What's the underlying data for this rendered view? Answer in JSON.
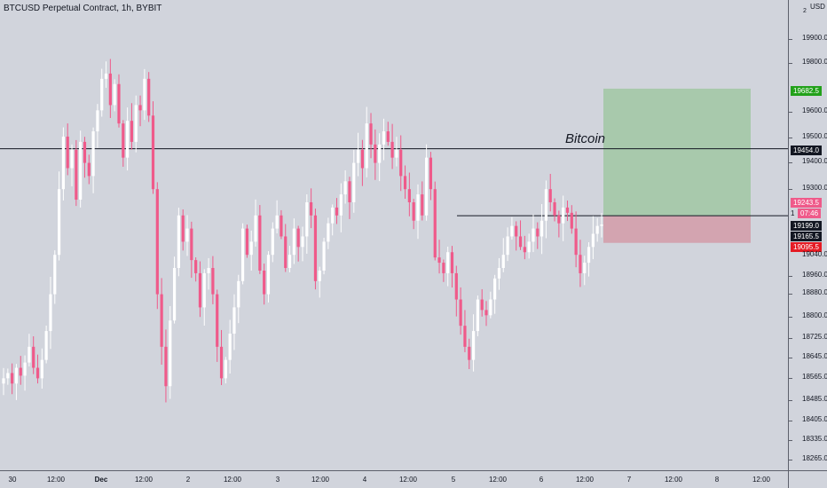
{
  "header": {
    "symbol_title": "BTCUSD Perpetual Contract, 1h, BYBIT"
  },
  "annotation": {
    "text": "Bitcoin"
  },
  "price_axis": {
    "currency": "USD",
    "top_marker": "2",
    "ticks": [
      "19900.0",
      "19800.0",
      "19600.0",
      "19500.0",
      "19400.0",
      "19300.0",
      "18960.0",
      "18880.0",
      "18800.0",
      "18725.0",
      "18645.0",
      "18565.0",
      "18485.0",
      "18405.0",
      "18335.0",
      "18265.0"
    ],
    "tags": {
      "target": "19682.5",
      "resistance": "19454.0",
      "high_marker": "19243.5",
      "countdown_prefix": "1",
      "countdown": "07:46",
      "level": "19199.0",
      "last_price": "19165.5",
      "stop": "19095.5",
      "partial": "19040.0"
    }
  },
  "time_axis": {
    "labels": [
      "30",
      "12:00",
      "Dec",
      "12:00",
      "2",
      "12:00",
      "3",
      "12:00",
      "4",
      "12:00",
      "5",
      "12:00",
      "6",
      "12:00",
      "7",
      "12:00",
      "8",
      "12:00"
    ]
  },
  "colors": {
    "background": "#d1d4dc",
    "bull_candle": "#ffffff",
    "bear_candle": "#ef5a8a",
    "profit_zone": "#a5c8a9",
    "loss_zone": "#d3a1ad",
    "target_tag": "#22a11a",
    "resistance_tag": "#131722",
    "high_tag": "#ef5a8a",
    "countdown_tag": "#131722",
    "stop_tag": "#e51b24"
  },
  "icons": {
    "level_line": "horizontal-line",
    "position_tool": "long-position-tool"
  },
  "chart_data": {
    "type": "candlestick",
    "title": "BTCUSD Perpetual Contract, 1h, BYBIT",
    "y_unit": "USD",
    "ylim": [
      18230,
      20020
    ],
    "x_labels": [
      "30",
      "12:00",
      "Dec",
      "12:00",
      "2",
      "12:00",
      "3",
      "12:00",
      "4",
      "12:00",
      "5",
      "12:00",
      "6",
      "12:00",
      "7",
      "12:00",
      "8",
      "12:00"
    ],
    "horizontal_levels": [
      19454,
      19199
    ],
    "long_position": {
      "entry": 19199,
      "target": 19682.5,
      "stop": 19095.5
    },
    "last_price": 19165.5,
    "candles_close": [
      18580,
      18600,
      18560,
      18620,
      18590,
      18640,
      18700,
      18620,
      18580,
      18650,
      18760,
      18900,
      19050,
      19300,
      19500,
      19380,
      19450,
      19260,
      19480,
      19400,
      19350,
      19520,
      19600,
      19720,
      19740,
      19620,
      19700,
      19550,
      19420,
      19560,
      19480,
      19620,
      19600,
      19720,
      19580,
      19300,
      18900,
      18700,
      18550,
      18800,
      19000,
      19200,
      19100,
      19150,
      19030,
      18980,
      18850,
      18980,
      19000,
      18900,
      18700,
      18580,
      18650,
      18750,
      18850,
      18950,
      19150,
      19050,
      19100,
      19200,
      18990,
      18900,
      19050,
      19150,
      19200,
      19120,
      19000,
      19050,
      19150,
      19080,
      19120,
      19250,
      19200,
      18950,
      18990,
      19100,
      19170,
      19230,
      19200,
      19280,
      19330,
      19250,
      19400,
      19450,
      19380,
      19550,
      19470,
      19400,
      19470,
      19520,
      19480,
      19420,
      19450,
      19350,
      19300,
      19250,
      19180,
      19280,
      19200,
      19420,
      19300,
      19040,
      19020,
      18980,
      19060,
      18980,
      18880,
      18780,
      18700,
      18650,
      18760,
      18880,
      18840,
      18820,
      18880,
      18960,
      19000,
      19050,
      19120,
      19160,
      19120,
      19080,
      19060,
      19100,
      19150,
      19120,
      19180,
      19300,
      19250,
      19200,
      19170,
      19230,
      19210,
      19150,
      19050,
      18980,
      19020,
      19080,
      19130,
      19160,
      19165.5
    ]
  }
}
